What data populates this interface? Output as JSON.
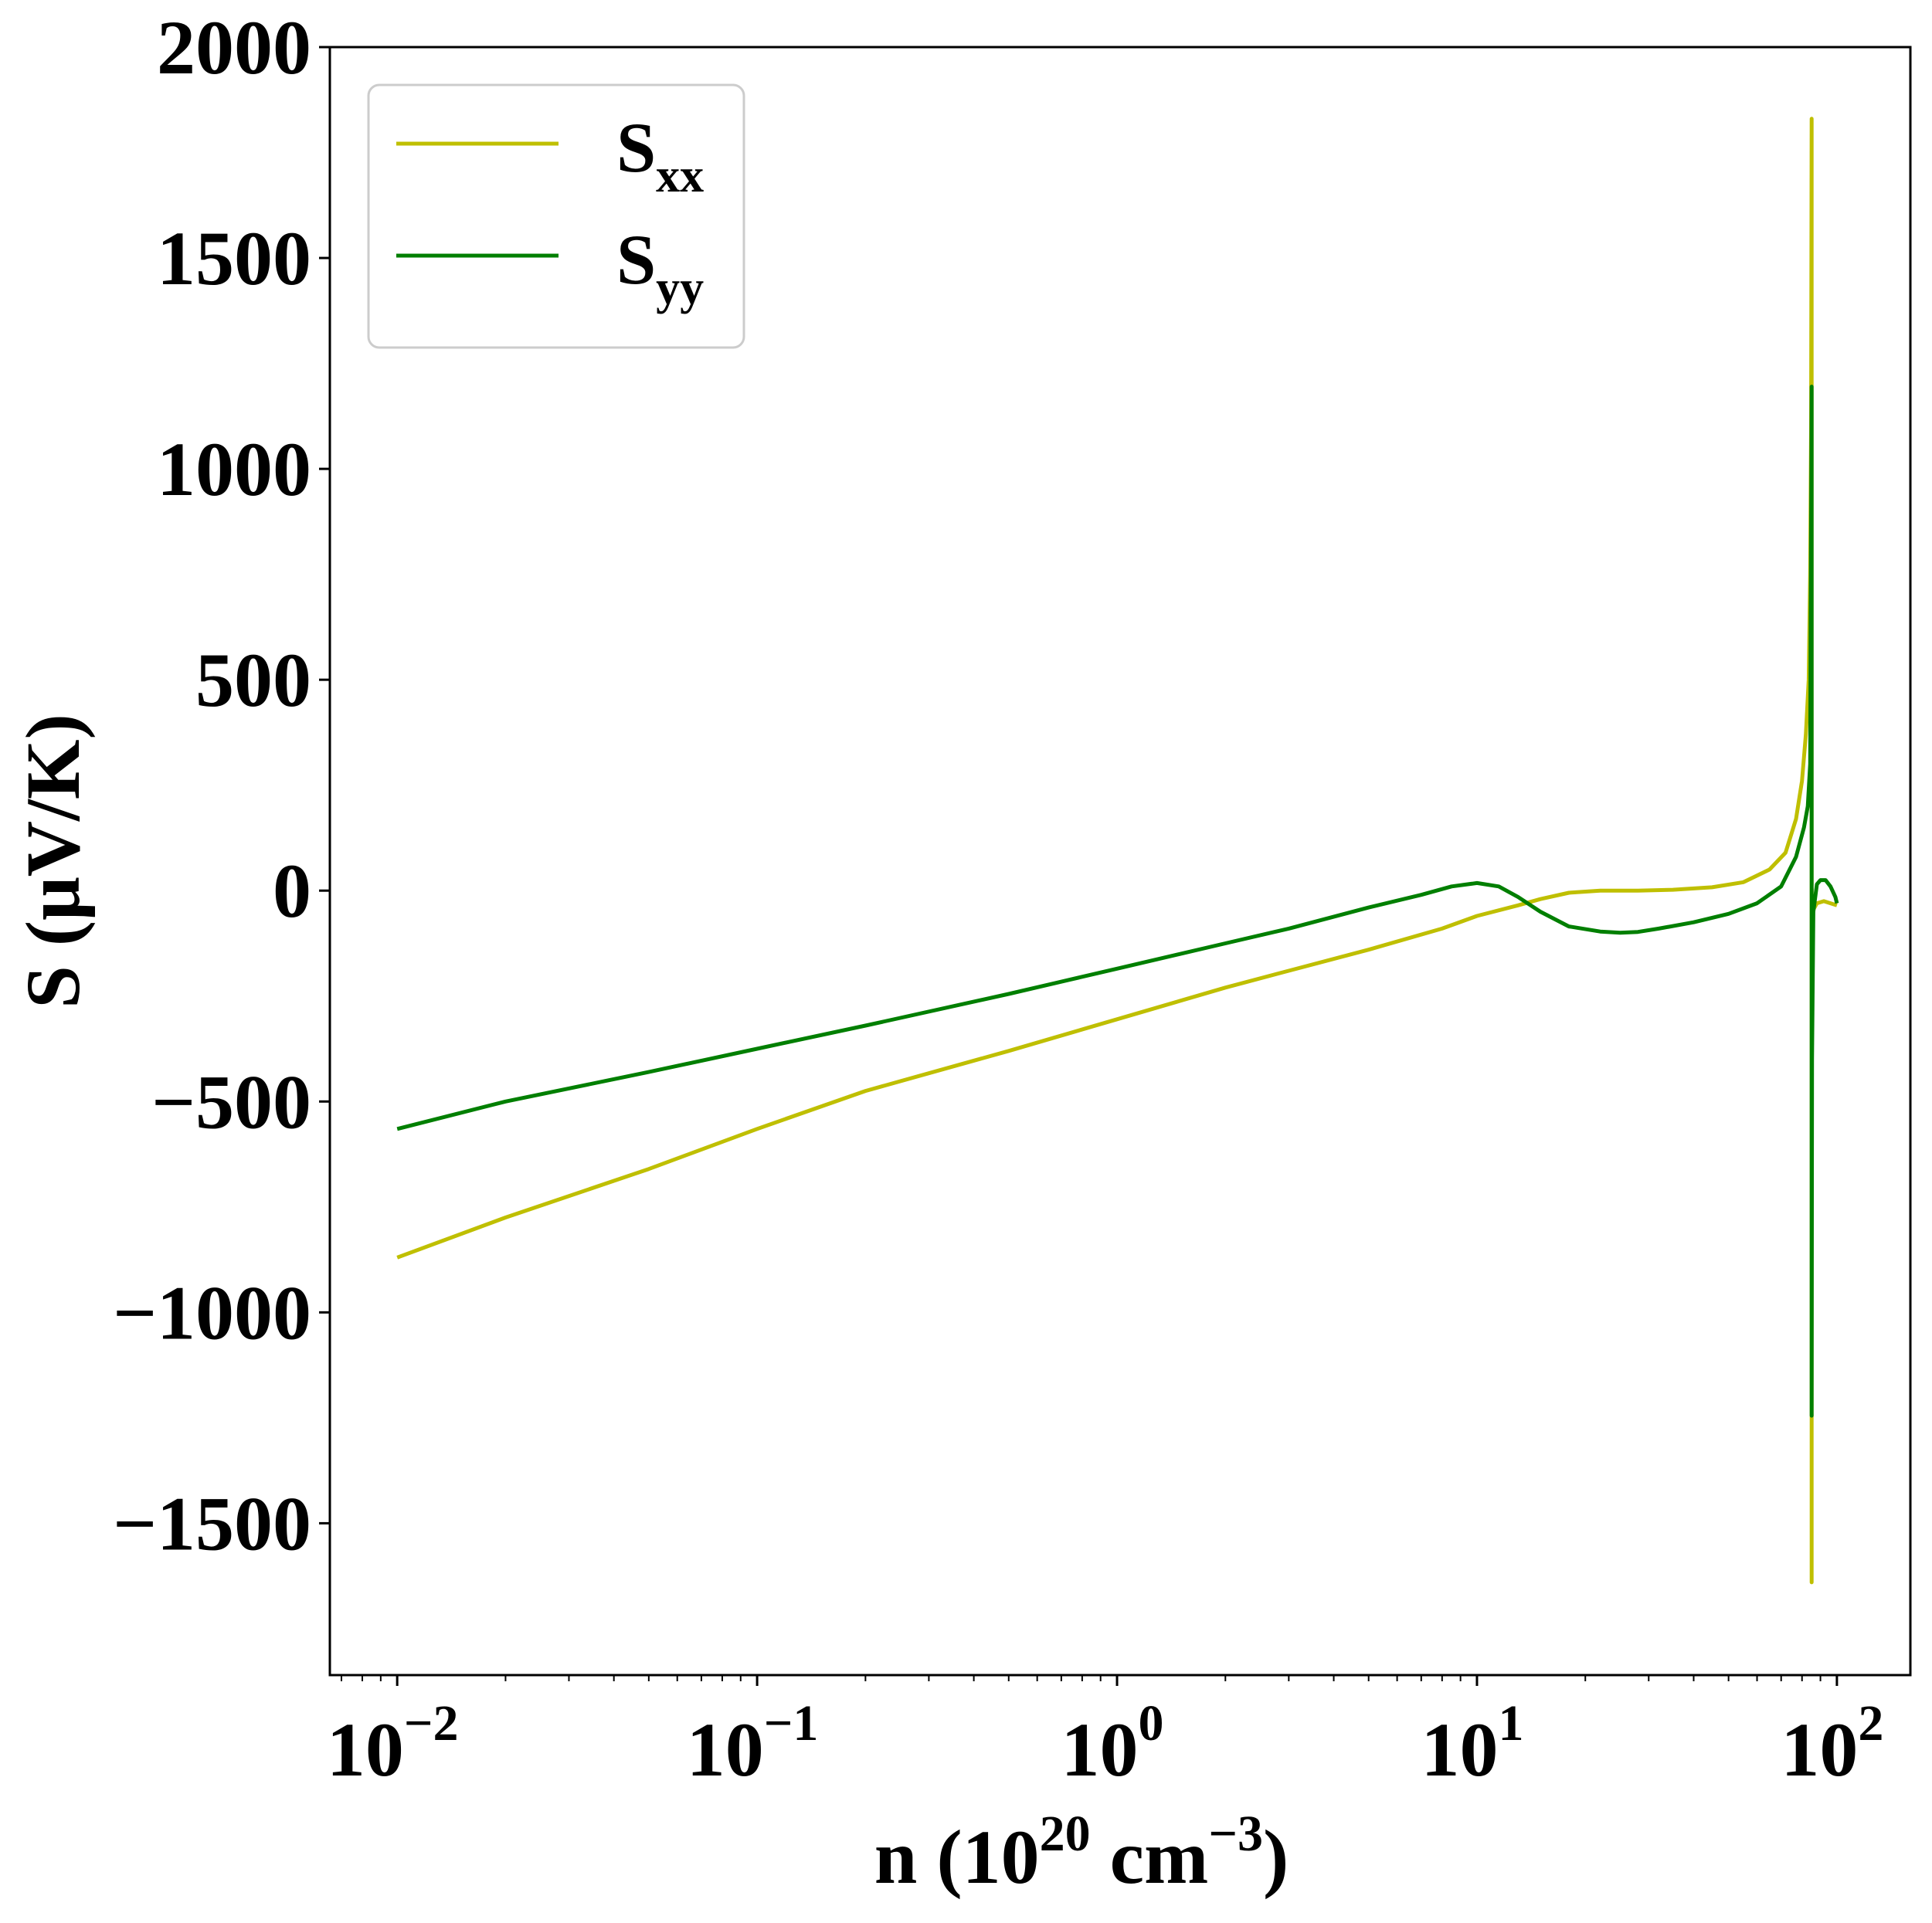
{
  "chart_data": {
    "type": "line",
    "x_scale": "log",
    "xlim": [
      0.0065,
      160
    ],
    "ylim": [
      -1860,
      2000
    ],
    "grid": false,
    "legend_position": "top-left",
    "xlabel": {
      "base": "n (10",
      "sup1": "20",
      "mid": " cm",
      "sup2": "−3",
      "end": ")"
    },
    "ylabel": "S (μV/K)",
    "x_ticks": [
      {
        "value": 0.01,
        "base": "10",
        "exp": "−2"
      },
      {
        "value": 0.1,
        "base": "10",
        "exp": "−1"
      },
      {
        "value": 1,
        "base": "10",
        "exp": "0"
      },
      {
        "value": 10,
        "base": "10",
        "exp": "1"
      },
      {
        "value": 100,
        "base": "10",
        "exp": "2"
      }
    ],
    "y_ticks": [
      {
        "value": 2000,
        "label": "2000"
      },
      {
        "value": 1500,
        "label": "1500"
      },
      {
        "value": 1000,
        "label": "1000"
      },
      {
        "value": 500,
        "label": "500"
      },
      {
        "value": 0,
        "label": "0"
      },
      {
        "value": -500,
        "label": "−500"
      },
      {
        "value": -1000,
        "label": "−1000"
      },
      {
        "value": -1500,
        "label": "−1500"
      }
    ],
    "series": [
      {
        "name_base": "S",
        "name_sub": "xx",
        "color": "#bfbf00",
        "x": [
          0.01,
          0.02,
          0.05,
          0.1,
          0.2,
          0.5,
          1.0,
          2.0,
          3.0,
          5.0,
          8.0,
          10.0,
          13.0,
          15.0,
          18.0,
          22.0,
          28.0,
          35.0,
          45.0,
          55.0,
          65.0,
          72.0,
          77.0,
          80.0,
          82.0,
          83.5,
          84.3,
          84.8,
          85.1,
          85.1,
          85.1,
          85.3,
          86.0,
          88.0,
          92.0,
          96.0,
          100.0
        ],
        "y": [
          -870,
          -775,
          -660,
          -565,
          -475,
          -380,
          -305,
          -230,
          -190,
          -140,
          -90,
          -60,
          -35,
          -20,
          -5,
          0,
          0,
          2,
          8,
          20,
          50,
          90,
          170,
          260,
          370,
          500,
          750,
          1100,
          1830,
          -1640,
          -300,
          -80,
          -45,
          -30,
          -25,
          -30,
          -35
        ]
      },
      {
        "name_base": "S",
        "name_sub": "yy",
        "color": "#007f00",
        "x": [
          0.01,
          0.02,
          0.05,
          0.1,
          0.2,
          0.5,
          1.0,
          2.0,
          3.0,
          5.0,
          7.0,
          8.5,
          10.0,
          11.5,
          13.0,
          15.0,
          18.0,
          22.0,
          25.0,
          28.0,
          32.0,
          40.0,
          50.0,
          60.0,
          70.0,
          77.0,
          81.0,
          83.0,
          84.3,
          85.1,
          85.1,
          85.3,
          86.0,
          88.0,
          90.0,
          93.0,
          96.0,
          99.0,
          100.0
        ],
        "y": [
          -565,
          -500,
          -430,
          -375,
          -320,
          -245,
          -185,
          -125,
          -90,
          -40,
          -10,
          10,
          18,
          10,
          -15,
          -50,
          -85,
          -97,
          -100,
          -98,
          -90,
          -75,
          -55,
          -30,
          10,
          80,
          150,
          200,
          300,
          1195,
          -1245,
          -400,
          -50,
          15,
          25,
          25,
          10,
          -15,
          -30
        ]
      }
    ]
  }
}
